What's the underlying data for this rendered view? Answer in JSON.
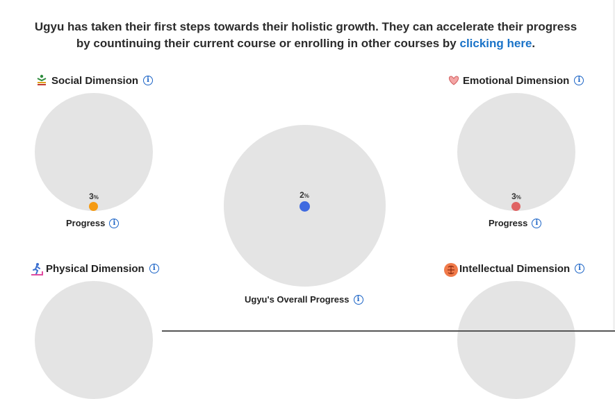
{
  "intro": {
    "text": "Ugyu has taken their first steps towards their holistic growth. They can accelerate their progress by countinuing their current course or enrolling in other courses by ",
    "link": "clicking here",
    "end": "."
  },
  "info_glyph": "i",
  "social": {
    "title": "Social Dimension",
    "icon": "social-people-icon",
    "value": "3",
    "unit": "%",
    "color": "#f59a12",
    "label": "Progress"
  },
  "emotional": {
    "title": "Emotional Dimension",
    "icon": "heart-icon",
    "value": "3",
    "unit": "%",
    "color": "#e06464",
    "label": "Progress"
  },
  "overall": {
    "value": "2",
    "unit": "%",
    "color": "#3f6ae0",
    "label": "Ugyu's Overall Progress"
  },
  "physical": {
    "title": "Physical Dimension",
    "icon": "runner-icon"
  },
  "intellectual": {
    "title": "Intellectual Dimension",
    "icon": "brain-icon"
  }
}
